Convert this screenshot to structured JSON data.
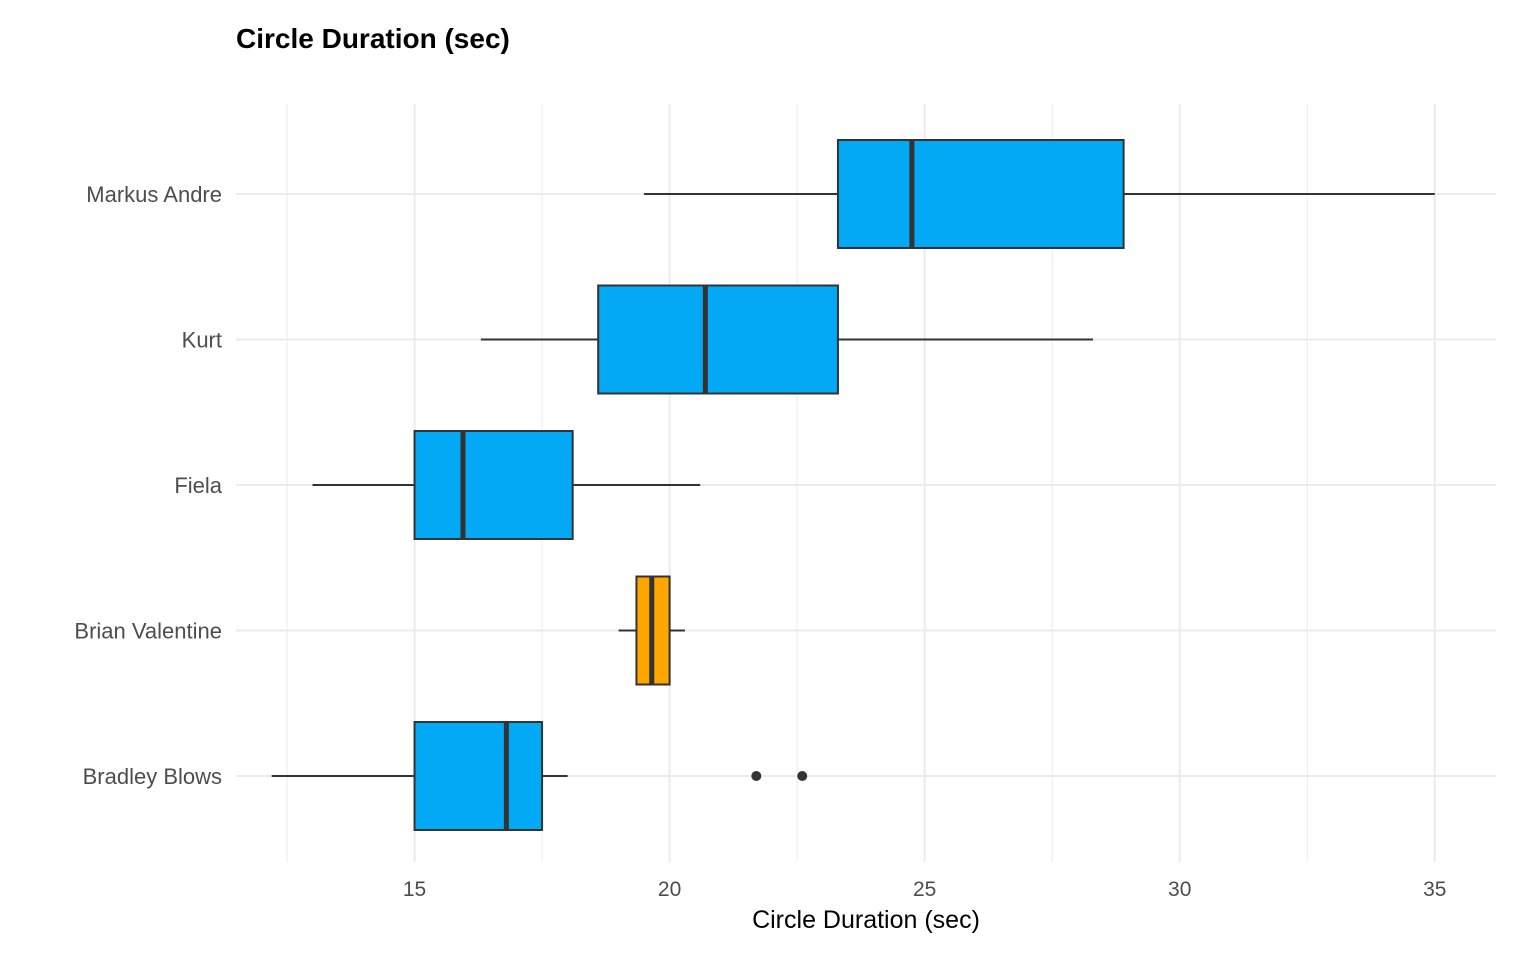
{
  "chart_data": {
    "type": "boxplot",
    "orientation": "horizontal",
    "title": "Circle Duration (sec)",
    "xlabel": "Circle Duration (sec)",
    "ylabel": "",
    "xlim": [
      11.5,
      36.2
    ],
    "x_ticks": [
      15,
      20,
      25,
      30,
      35
    ],
    "grid": true,
    "legend": "none",
    "categories": [
      "Bradley Blows",
      "Brian Valentine",
      "Fiela",
      "Kurt",
      "Markus Andre"
    ],
    "series": [
      {
        "category": "Bradley Blows",
        "whisker_low": 12.2,
        "q1": 15.0,
        "median": 16.8,
        "q3": 17.5,
        "whisker_high": 18.0,
        "outliers": [
          21.7,
          22.6
        ],
        "color": "#03a9f4"
      },
      {
        "category": "Brian Valentine",
        "whisker_low": 19.0,
        "q1": 19.35,
        "median": 19.65,
        "q3": 20.0,
        "whisker_high": 20.3,
        "outliers": [],
        "color": "#ffa500"
      },
      {
        "category": "Fiela",
        "whisker_low": 13.0,
        "q1": 15.0,
        "median": 15.95,
        "q3": 18.1,
        "whisker_high": 20.6,
        "outliers": [],
        "color": "#03a9f4"
      },
      {
        "category": "Kurt",
        "whisker_low": 16.3,
        "q1": 18.6,
        "median": 20.7,
        "q3": 23.3,
        "whisker_high": 28.3,
        "outliers": [],
        "color": "#03a9f4"
      },
      {
        "category": "Markus Andre",
        "whisker_low": 19.5,
        "q1": 23.3,
        "median": 24.75,
        "q3": 28.9,
        "whisker_high": 35.0,
        "outliers": [],
        "color": "#03a9f4"
      }
    ],
    "colors": {
      "grid": "#ebebeb",
      "box_stroke": "#333333",
      "whisker": "#333333"
    }
  }
}
